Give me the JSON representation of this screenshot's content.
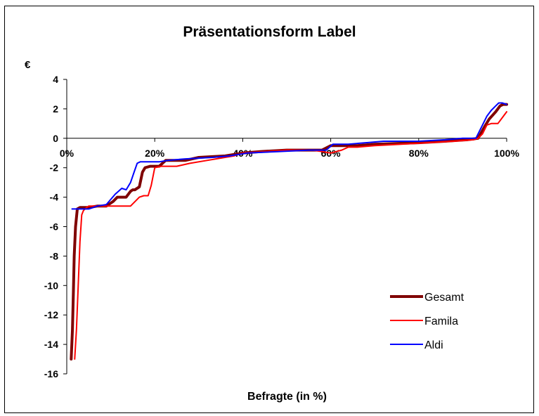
{
  "chart_data": {
    "type": "line",
    "title": "Präsentationsform Label",
    "xlabel": "Befragte (in %)",
    "ylabel": "€",
    "xlim": [
      0,
      100
    ],
    "ylim": [
      -16,
      4
    ],
    "y_ticks": [
      4,
      2,
      0,
      -2,
      -4,
      -6,
      -8,
      -10,
      -12,
      -14,
      -16
    ],
    "x_ticks": [
      0,
      20,
      40,
      60,
      80,
      100
    ],
    "x_tick_labels": [
      "0%",
      "20%",
      "40%",
      "60%",
      "80%",
      "100%"
    ],
    "y_tick_labels": [
      "4",
      "2",
      "0",
      "-2",
      "-4",
      "-6",
      "-8",
      "-10",
      "-12",
      "-14",
      "-16"
    ],
    "grid": false,
    "legend_position": "bottom-right",
    "series": [
      {
        "name": "Gesamt",
        "color": "#7f0000",
        "width": 4,
        "x": [
          1.0,
          1.3,
          1.5,
          1.7,
          2.0,
          2.4,
          3,
          5,
          7,
          9,
          10.5,
          11.5,
          12.5,
          13.5,
          14.5,
          15,
          15.5,
          16.5,
          17.2,
          17.8,
          19,
          21,
          22.5,
          23.5,
          27,
          30,
          36,
          40,
          44,
          50,
          58,
          60,
          62,
          66,
          70,
          80,
          86,
          91,
          93.5,
          95,
          96,
          97.5,
          98.5,
          99.2,
          100
        ],
        "y": [
          -15.0,
          -13.0,
          -10.5,
          -8.0,
          -6.0,
          -4.8,
          -4.7,
          -4.7,
          -4.6,
          -4.6,
          -4.3,
          -4.0,
          -4.0,
          -4.0,
          -3.6,
          -3.5,
          -3.5,
          -3.3,
          -2.3,
          -2.0,
          -1.9,
          -1.9,
          -1.5,
          -1.5,
          -1.5,
          -1.3,
          -1.2,
          -1.0,
          -0.9,
          -0.8,
          -0.8,
          -0.5,
          -0.5,
          -0.5,
          -0.4,
          -0.3,
          -0.2,
          -0.1,
          0.0,
          0.8,
          1.3,
          1.8,
          2.2,
          2.3,
          2.3
        ]
      },
      {
        "name": "Famila",
        "color": "#ff0000",
        "width": 2,
        "x": [
          1.8,
          2.2,
          2.6,
          3.0,
          3.4,
          3.8,
          4.5,
          5,
          6,
          8,
          10,
          12,
          13.5,
          14.5,
          15.5,
          16.5,
          17.5,
          18.5,
          19.2,
          20,
          21.5,
          23,
          25,
          28,
          32,
          38,
          40,
          45,
          50,
          56,
          60,
          62.5,
          64,
          66,
          70,
          76,
          82,
          88,
          92.5,
          93.5,
          94.5,
          95.5,
          96.5,
          98,
          100
        ],
        "y": [
          -15.0,
          -13.0,
          -10.0,
          -7.0,
          -5.2,
          -4.9,
          -4.7,
          -4.6,
          -4.6,
          -4.6,
          -4.6,
          -4.6,
          -4.6,
          -4.6,
          -4.3,
          -4.0,
          -3.9,
          -3.9,
          -3.2,
          -2.0,
          -1.9,
          -1.9,
          -1.9,
          -1.7,
          -1.5,
          -1.2,
          -1.0,
          -0.9,
          -0.8,
          -0.8,
          -1.0,
          -0.8,
          -0.6,
          -0.6,
          -0.5,
          -0.4,
          -0.3,
          -0.2,
          -0.1,
          0.0,
          0.3,
          0.9,
          1.0,
          1.0,
          1.8
        ]
      },
      {
        "name": "Aldi",
        "color": "#0000ff",
        "width": 2,
        "x": [
          1.2,
          1.8,
          3,
          5,
          7,
          9,
          11,
          12.5,
          13.5,
          14.5,
          15.3,
          16,
          16.7,
          17.3,
          21,
          23,
          27,
          33,
          37,
          41,
          48,
          55,
          59,
          60.5,
          64,
          68,
          72,
          76,
          80,
          86,
          90,
          93,
          94.5,
          95.5,
          96.5,
          97.5,
          98.2,
          99,
          100
        ],
        "y": [
          -4.8,
          -4.8,
          -4.8,
          -4.8,
          -4.6,
          -4.5,
          -3.8,
          -3.4,
          -3.5,
          -3.0,
          -2.3,
          -1.7,
          -1.6,
          -1.6,
          -1.6,
          -1.5,
          -1.4,
          -1.3,
          -1.2,
          -1.0,
          -0.9,
          -0.8,
          -0.8,
          -0.4,
          -0.4,
          -0.3,
          -0.2,
          -0.2,
          -0.2,
          -0.1,
          0.0,
          0.0,
          0.9,
          1.5,
          1.9,
          2.2,
          2.4,
          2.4,
          2.3
        ]
      }
    ]
  }
}
